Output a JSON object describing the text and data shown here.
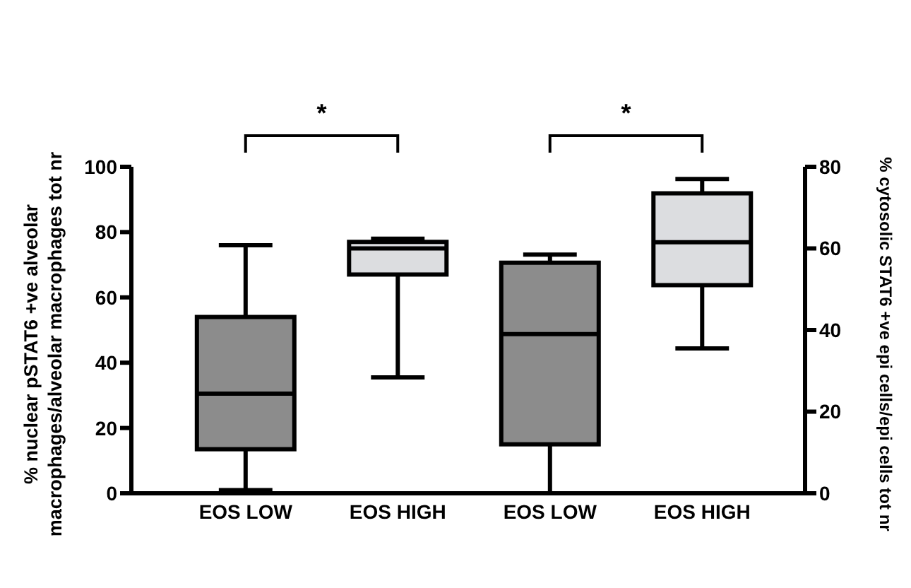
{
  "chart_data": {
    "type": "box",
    "categories": [
      "EOS LOW",
      "EOS HIGH",
      "EOS LOW",
      "EOS HIGH"
    ],
    "series": [
      {
        "axis": "y",
        "colors": [
          "#8c8c8c",
          "#dcdde0",
          null,
          null
        ],
        "boxes": [
          {
            "low": 1,
            "q1": 13.5,
            "median": 30.5,
            "q3": 54,
            "high": 76
          },
          {
            "low": 35.5,
            "q1": 67,
            "median": 75,
            "q3": 77,
            "high": 78
          },
          null,
          null
        ]
      },
      {
        "axis": "y2",
        "colors": [
          null,
          null,
          "#8c8c8c",
          "#dcdde0"
        ],
        "boxes": [
          null,
          null,
          {
            "low": 0,
            "q1": 12,
            "median": 39,
            "q3": 56.5,
            "high": 58.5
          },
          {
            "low": 35.5,
            "q1": 51,
            "median": 61.5,
            "q3": 73.5,
            "high": 77
          }
        ]
      }
    ],
    "ylabel": "% nuclear pSTAT6 +ve alveolar macrophages/alveolar macrophages tot nr",
    "y2label": "% cytosolic STAT6 +ve epi cells/epi cells tot nr",
    "ylim": [
      0,
      100
    ],
    "yticks": [
      0,
      20,
      40,
      60,
      80,
      100
    ],
    "y2lim": [
      0,
      80
    ],
    "y2ticks": [
      0,
      20,
      40,
      60,
      80
    ],
    "annotations": [
      "*",
      "*"
    ],
    "grid": false,
    "legend": false
  }
}
